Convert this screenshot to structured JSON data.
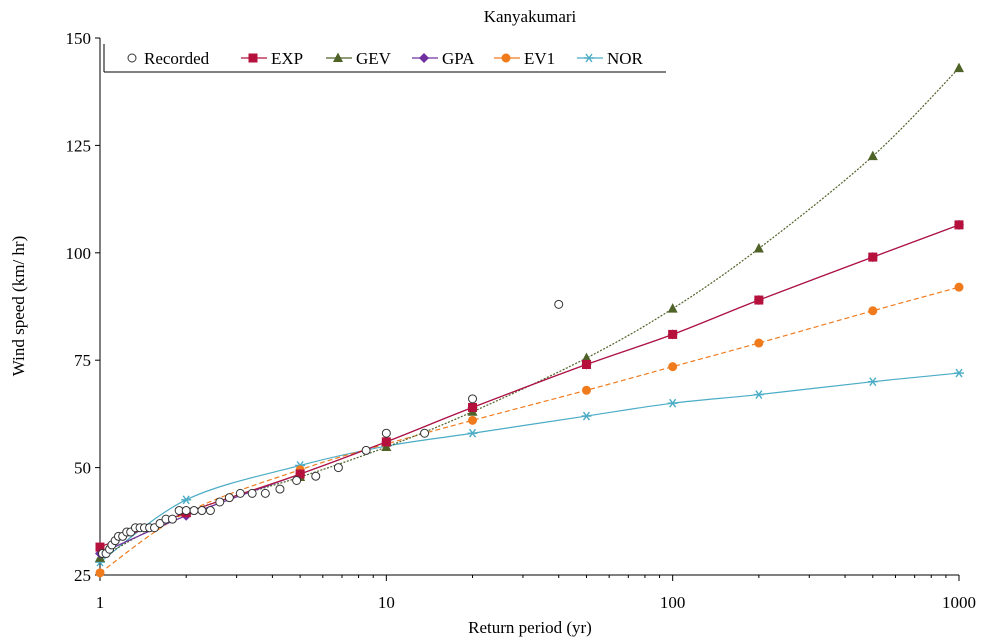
{
  "chart_data": {
    "type": "line",
    "title": "Kanyakumari",
    "xlabel": "Return period (yr)",
    "ylabel": "Wind speed (km/ hr)",
    "xscale": "log",
    "xlim": [
      1,
      1000
    ],
    "ylim": [
      25,
      150
    ],
    "xticks": [
      1,
      10,
      100,
      1000
    ],
    "xtick_labels": [
      "1",
      "10",
      "100",
      "1000"
    ],
    "yticks": [
      25,
      50,
      75,
      100,
      125,
      150
    ],
    "ytick_labels": [
      "25",
      "50",
      "75",
      "100",
      "125",
      "150"
    ],
    "grid": false,
    "legend_position": "top-left",
    "series": [
      {
        "name": "Recorded",
        "marker": "open-circle",
        "color": "#000000",
        "line": false,
        "x": [
          1.02,
          1.05,
          1.08,
          1.1,
          1.13,
          1.16,
          1.2,
          1.24,
          1.28,
          1.33,
          1.38,
          1.43,
          1.49,
          1.55,
          1.62,
          1.7,
          1.79,
          1.89,
          2.0,
          2.13,
          2.27,
          2.43,
          2.62,
          2.83,
          3.09,
          3.4,
          3.78,
          4.25,
          4.86,
          5.67,
          6.8,
          8.5,
          10.0,
          13.6,
          20.0,
          40.0
        ],
        "y": [
          30,
          30,
          31,
          32,
          33,
          34,
          34,
          35,
          35,
          36,
          36,
          36,
          36,
          36,
          37,
          38,
          38,
          40,
          40,
          40,
          40,
          40,
          42,
          43,
          44,
          44,
          44,
          45,
          47,
          48,
          50,
          54,
          58,
          58,
          66,
          88
        ]
      },
      {
        "name": "EXP",
        "marker": "square",
        "color": "#b5113c",
        "line": true,
        "x": [
          1,
          2,
          5,
          10,
          20,
          50,
          100,
          200,
          500,
          1000
        ],
        "y": [
          31.5,
          39.5,
          48.5,
          56,
          64,
          74,
          81,
          89,
          99,
          106.5
        ]
      },
      {
        "name": "GEV",
        "marker": "triangle",
        "color": "#4f6228",
        "line": true,
        "x": [
          1,
          2,
          5,
          10,
          20,
          50,
          100,
          200,
          500,
          1000
        ],
        "y": [
          29,
          39.5,
          47.8,
          54.8,
          63,
          75.5,
          87,
          101,
          122.5,
          143
        ]
      },
      {
        "name": "GPA",
        "marker": "diamond",
        "color": "#7030a0",
        "line": true,
        "x": [
          1,
          2,
          5,
          10,
          20,
          50,
          100,
          200,
          500,
          1000
        ],
        "y": [
          30,
          38.8,
          48.5,
          56,
          64,
          74,
          81,
          89,
          99,
          106.5
        ]
      },
      {
        "name": "EV1",
        "marker": "circle",
        "color": "#f07b1d",
        "line": true,
        "x": [
          1,
          2,
          5,
          10,
          20,
          50,
          100,
          200,
          500,
          1000
        ],
        "y": [
          25.5,
          39.5,
          49.5,
          55.5,
          61,
          68,
          73.5,
          79,
          86.5,
          92
        ]
      },
      {
        "name": "NOR",
        "marker": "asterisk",
        "color": "#4bacc6",
        "line": true,
        "x": [
          1,
          2,
          5,
          10,
          20,
          50,
          100,
          200,
          500,
          1000
        ],
        "y": [
          28,
          42.5,
          50.5,
          55,
          58,
          62,
          65,
          67,
          70,
          72
        ]
      }
    ]
  }
}
